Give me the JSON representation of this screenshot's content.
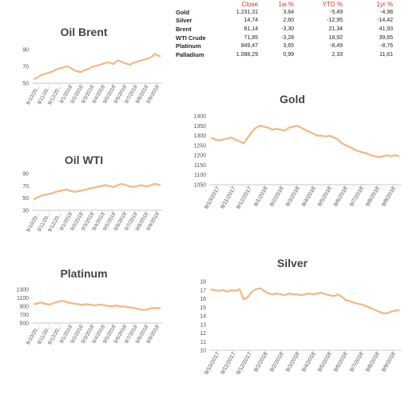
{
  "summary_table": {
    "headers": [
      "",
      "Close",
      "1w %",
      "YTD %",
      "1yr %"
    ],
    "rows": [
      [
        "Gold",
        "1.231,31",
        "3,64",
        "-5,49",
        "-4,98"
      ],
      [
        "Silver",
        "14,74",
        "2,60",
        "-12,95",
        "-14,42"
      ],
      [
        "Brent",
        "81,14",
        "-3,30",
        "21,34",
        "41,93"
      ],
      [
        "WTI Crude",
        "71,85",
        "-3,28",
        "18,92",
        "39,65"
      ],
      [
        "Platinum",
        "849,47",
        "3,65",
        "-8,49",
        "-8,76"
      ],
      [
        "Palladium",
        "1.088,29",
        "0,99",
        "2,33",
        "11,61"
      ]
    ]
  },
  "colors": {
    "line": "#f2b785",
    "axis": "#c8c8c8",
    "text": "#555555"
  },
  "chart_data": [
    {
      "id": "oil-brent",
      "type": "line",
      "title": "Oil Brent",
      "x_ticks": [
        "9/10/20...",
        "9/11/20...",
        "9/12/20...",
        "9/1/2018",
        "9/2/2018",
        "9/3/2018",
        "9/4/2018",
        "9/5/2018",
        "9/6/2018",
        "9/7/2018",
        "9/8/2018",
        "9/9/2018"
      ],
      "y_ticks": [
        "50",
        "70",
        "90"
      ],
      "ylim": [
        50,
        90
      ],
      "values": [
        55,
        56,
        58,
        60,
        61,
        62,
        63,
        64,
        66,
        67,
        68,
        69,
        70,
        69,
        67,
        65,
        64,
        63,
        65,
        66,
        67,
        69,
        70,
        71,
        72,
        73,
        74,
        75,
        74,
        73,
        76,
        77,
        75,
        74,
        73,
        72,
        74,
        75,
        76,
        77,
        78,
        79,
        80,
        82,
        85,
        83,
        82
      ]
    },
    {
      "id": "oil-wti",
      "type": "line",
      "title": "Oil WTI",
      "x_ticks": [
        "9/10/20...",
        "9/11/20...",
        "9/12/20...",
        "9/1/2018",
        "9/2/2018",
        "9/3/2018",
        "9/4/2018",
        "9/5/2018",
        "9/6/2018",
        "9/7/2018",
        "9/8/2018",
        "9/9/2018"
      ],
      "y_ticks": [
        "30",
        "50",
        "70",
        "90"
      ],
      "ylim": [
        30,
        90
      ],
      "values": [
        48,
        50,
        52,
        54,
        55,
        56,
        57,
        58,
        60,
        61,
        62,
        63,
        64,
        62,
        61,
        60,
        61,
        62,
        63,
        64,
        65,
        66,
        67,
        68,
        69,
        70,
        71,
        70,
        69,
        68,
        70,
        72,
        73,
        72,
        70,
        69,
        68,
        69,
        70,
        71,
        70,
        69,
        70,
        72,
        73,
        72,
        71
      ]
    },
    {
      "id": "platinum",
      "type": "line",
      "title": "Platinum",
      "x_ticks": [
        "9/10/20...",
        "9/11/20...",
        "9/12/20...",
        "9/1/2018",
        "9/2/2018",
        "9/3/2018",
        "9/4/2018",
        "9/5/2018",
        "9/6/2018",
        "9/7/2018",
        "9/8/2018",
        "9/9/2018"
      ],
      "y_ticks": [
        "500",
        "700",
        "900",
        "1100",
        "1300"
      ],
      "ylim": [
        500,
        1300
      ],
      "values": [
        950,
        960,
        980,
        990,
        960,
        950,
        940,
        970,
        990,
        1010,
        1020,
        1030,
        1000,
        980,
        970,
        960,
        950,
        940,
        930,
        950,
        940,
        930,
        920,
        930,
        940,
        930,
        920,
        910,
        900,
        910,
        920,
        900,
        890,
        900,
        880,
        870,
        860,
        850,
        830,
        820,
        810,
        820,
        840,
        860,
        850,
        860,
        850
      ]
    },
    {
      "id": "gold",
      "type": "line",
      "title": "Gold",
      "x_ticks": [
        "9/10/2017",
        "9/11/2017",
        "9/12/2017",
        "9/1/2018",
        "9/2/2018",
        "9/3/2018",
        "9/4/2018",
        "9/5/2018",
        "9/6/2018",
        "9/7/2018",
        "9/8/2018",
        "9/9/2018"
      ],
      "y_ticks": [
        "1050",
        "1100",
        "1150",
        "1200",
        "1250",
        "1300",
        "1350",
        "1400"
      ],
      "ylim": [
        1050,
        1400
      ],
      "values": [
        1290,
        1280,
        1275,
        1280,
        1285,
        1290,
        1280,
        1270,
        1260,
        1290,
        1320,
        1340,
        1350,
        1345,
        1340,
        1330,
        1335,
        1330,
        1325,
        1340,
        1345,
        1350,
        1340,
        1330,
        1320,
        1310,
        1300,
        1300,
        1295,
        1300,
        1290,
        1280,
        1260,
        1250,
        1240,
        1230,
        1220,
        1215,
        1210,
        1200,
        1195,
        1190,
        1195,
        1200,
        1195,
        1200,
        1195
      ]
    },
    {
      "id": "silver",
      "type": "line",
      "title": "Silver",
      "x_ticks": [
        "9/10/2017",
        "9/11/2017",
        "9/12/2017",
        "9/1/2018",
        "9/2/2018",
        "9/3/2018",
        "9/4/2018",
        "9/5/2018",
        "9/6/2018",
        "9/7/2018",
        "9/8/2018",
        "9/9/2018"
      ],
      "y_ticks": [
        "10",
        "11",
        "12",
        "13",
        "14",
        "15",
        "16",
        "17",
        "18"
      ],
      "ylim": [
        10,
        18
      ],
      "values": [
        17.1,
        17.0,
        16.9,
        17.0,
        16.8,
        17.0,
        16.9,
        17.1,
        15.9,
        16.2,
        16.8,
        17.1,
        17.2,
        16.9,
        16.6,
        16.5,
        16.6,
        16.5,
        16.4,
        16.6,
        16.5,
        16.5,
        16.4,
        16.5,
        16.6,
        16.5,
        16.6,
        16.7,
        16.5,
        16.4,
        16.3,
        16.5,
        16.2,
        15.8,
        15.7,
        15.5,
        15.4,
        15.3,
        15.1,
        14.9,
        14.7,
        14.5,
        14.3,
        14.3,
        14.5,
        14.6,
        14.7
      ]
    }
  ]
}
